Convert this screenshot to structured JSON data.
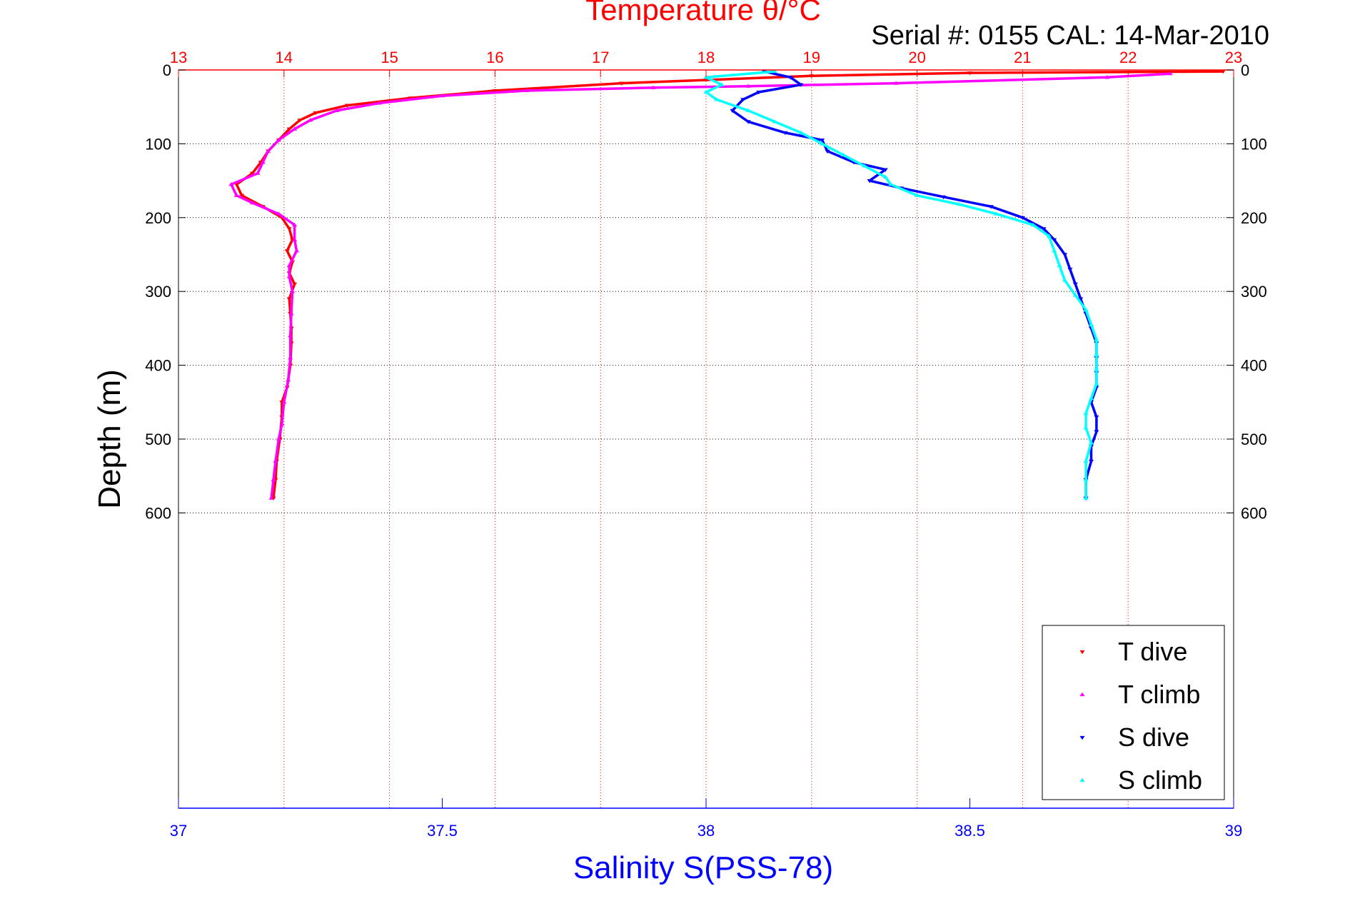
{
  "chart_data": {
    "type": "scatter",
    "title": "Temperature θ/°C",
    "subtitle": "Serial #: 0155  CAL: 14-Mar-2010",
    "xlabel": "Salinity S(PSS-78)",
    "ylabel": "Depth (m)",
    "x_top": {
      "label": "Temperature θ/°C",
      "range": [
        13,
        23
      ],
      "ticks": [
        "13",
        "14",
        "15",
        "16",
        "17",
        "18",
        "19",
        "20",
        "21",
        "22",
        "23"
      ]
    },
    "x_bottom": {
      "label": "Salinity S(PSS-78)",
      "range": [
        37,
        39
      ],
      "ticks": [
        "37",
        "37.5",
        "38",
        "38.5",
        "39"
      ]
    },
    "y": {
      "label": "Depth (m)",
      "range": [
        0,
        1000
      ],
      "reversed": true,
      "ticks": [
        "0",
        "100",
        "200",
        "300",
        "400",
        "500",
        "600"
      ]
    },
    "grid": "vertical lines at temperature ticks (red dotted), horizontal lines at depth ticks (black dotted)",
    "legend_position": "bottom-right",
    "series": [
      {
        "name": "T dive",
        "axis": "temperature",
        "color": "#ff0000",
        "marker": "triangle-down",
        "points": [
          [
            22.9,
            2
          ],
          [
            20.5,
            4
          ],
          [
            19.0,
            8
          ],
          [
            17.2,
            18
          ],
          [
            16.0,
            28
          ],
          [
            15.2,
            38
          ],
          [
            14.6,
            48
          ],
          [
            14.3,
            58
          ],
          [
            14.15,
            68
          ],
          [
            14.05,
            80
          ],
          [
            13.95,
            95
          ],
          [
            13.85,
            110
          ],
          [
            13.78,
            125
          ],
          [
            13.7,
            140
          ],
          [
            13.55,
            155
          ],
          [
            13.6,
            170
          ],
          [
            13.8,
            185
          ],
          [
            13.98,
            200
          ],
          [
            14.05,
            215
          ],
          [
            14.08,
            230
          ],
          [
            14.03,
            245
          ],
          [
            14.08,
            260
          ],
          [
            14.05,
            275
          ],
          [
            14.1,
            290
          ],
          [
            14.05,
            310
          ],
          [
            14.06,
            330
          ],
          [
            14.07,
            350
          ],
          [
            14.07,
            370
          ],
          [
            14.06,
            400
          ],
          [
            14.03,
            430
          ],
          [
            13.98,
            450
          ],
          [
            13.98,
            470
          ],
          [
            13.96,
            500
          ],
          [
            13.93,
            530
          ],
          [
            13.92,
            555
          ],
          [
            13.9,
            580
          ]
        ]
      },
      {
        "name": "T climb",
        "axis": "temperature",
        "color": "#ff00ff",
        "marker": "triangle-up",
        "points": [
          [
            22.4,
            5
          ],
          [
            21.8,
            10
          ],
          [
            19.8,
            18
          ],
          [
            18.4,
            22
          ],
          [
            17.5,
            24
          ],
          [
            16.3,
            28
          ],
          [
            15.5,
            35
          ],
          [
            14.9,
            45
          ],
          [
            14.5,
            55
          ],
          [
            14.25,
            68
          ],
          [
            14.1,
            80
          ],
          [
            13.95,
            95
          ],
          [
            13.85,
            110
          ],
          [
            13.8,
            125
          ],
          [
            13.75,
            140
          ],
          [
            13.5,
            155
          ],
          [
            13.55,
            170
          ],
          [
            13.7,
            180
          ],
          [
            13.95,
            195
          ],
          [
            14.1,
            210
          ],
          [
            14.1,
            230
          ],
          [
            14.12,
            245
          ],
          [
            14.05,
            265
          ],
          [
            14.05,
            280
          ],
          [
            14.08,
            300
          ],
          [
            14.07,
            330
          ],
          [
            14.06,
            360
          ],
          [
            14.06,
            390
          ],
          [
            14.04,
            420
          ],
          [
            14.0,
            450
          ],
          [
            13.98,
            480
          ],
          [
            13.95,
            500
          ],
          [
            13.92,
            530
          ],
          [
            13.9,
            555
          ],
          [
            13.88,
            580
          ]
        ]
      },
      {
        "name": "S dive",
        "axis": "salinity",
        "color": "#0000ff",
        "marker": "triangle-down",
        "points": [
          [
            38.11,
            2
          ],
          [
            38.16,
            10
          ],
          [
            38.18,
            20
          ],
          [
            38.1,
            30
          ],
          [
            38.07,
            40
          ],
          [
            38.05,
            55
          ],
          [
            38.08,
            70
          ],
          [
            38.15,
            85
          ],
          [
            38.22,
            95
          ],
          [
            38.23,
            110
          ],
          [
            38.28,
            125
          ],
          [
            38.34,
            135
          ],
          [
            38.31,
            150
          ],
          [
            38.37,
            160
          ],
          [
            38.45,
            172
          ],
          [
            38.54,
            185
          ],
          [
            38.6,
            200
          ],
          [
            38.64,
            215
          ],
          [
            38.66,
            230
          ],
          [
            38.68,
            250
          ],
          [
            38.69,
            270
          ],
          [
            38.7,
            290
          ],
          [
            38.71,
            310
          ],
          [
            38.72,
            330
          ],
          [
            38.73,
            350
          ],
          [
            38.74,
            370
          ],
          [
            38.74,
            390
          ],
          [
            38.74,
            410
          ],
          [
            38.74,
            430
          ],
          [
            38.73,
            450
          ],
          [
            38.74,
            470
          ],
          [
            38.74,
            490
          ],
          [
            38.73,
            510
          ],
          [
            38.73,
            530
          ],
          [
            38.72,
            555
          ],
          [
            38.72,
            580
          ]
        ]
      },
      {
        "name": "S climb",
        "axis": "salinity",
        "color": "#00ffff",
        "marker": "triangle-up",
        "points": [
          [
            38.13,
            2
          ],
          [
            38.0,
            10
          ],
          [
            38.03,
            20
          ],
          [
            38.0,
            30
          ],
          [
            38.02,
            40
          ],
          [
            38.08,
            55
          ],
          [
            38.13,
            70
          ],
          [
            38.18,
            85
          ],
          [
            38.22,
            100
          ],
          [
            38.26,
            115
          ],
          [
            38.3,
            130
          ],
          [
            38.34,
            145
          ],
          [
            38.35,
            155
          ],
          [
            38.4,
            170
          ],
          [
            38.48,
            182
          ],
          [
            38.55,
            195
          ],
          [
            38.62,
            210
          ],
          [
            38.65,
            225
          ],
          [
            38.66,
            245
          ],
          [
            38.67,
            265
          ],
          [
            38.68,
            285
          ],
          [
            38.7,
            305
          ],
          [
            38.72,
            325
          ],
          [
            38.73,
            345
          ],
          [
            38.74,
            365
          ],
          [
            38.74,
            385
          ],
          [
            38.74,
            405
          ],
          [
            38.74,
            425
          ],
          [
            38.73,
            445
          ],
          [
            38.72,
            465
          ],
          [
            38.72,
            485
          ],
          [
            38.73,
            505
          ],
          [
            38.72,
            530
          ],
          [
            38.72,
            555
          ],
          [
            38.72,
            580
          ]
        ]
      }
    ]
  }
}
